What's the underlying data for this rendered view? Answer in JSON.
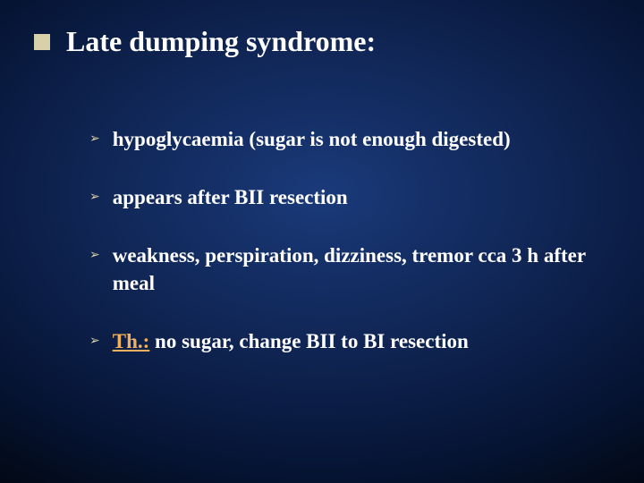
{
  "slide": {
    "background_gradient": {
      "type": "radial",
      "center_color": "#1a3a7a",
      "mid_color": "#0f2452",
      "outer_color": "#061536",
      "edge_color": "#020814"
    },
    "title_bullet_color": "#d8d0a8",
    "arrow_bullet_color": "#d8d0a8",
    "th_color": "#f0b060",
    "title": "Late dumping syndrome:",
    "title_fontsize": 32,
    "body_fontsize": 23,
    "items": [
      {
        "text": "hypoglycaemia (sugar is not enough digested)"
      },
      {
        "text": "appears after BII resection"
      },
      {
        "text": "weakness, perspiration, dizziness, tremor cca 3 h after meal"
      },
      {
        "th_prefix": "Th.:",
        "text": " no sugar, change BII to BI resection"
      }
    ]
  }
}
